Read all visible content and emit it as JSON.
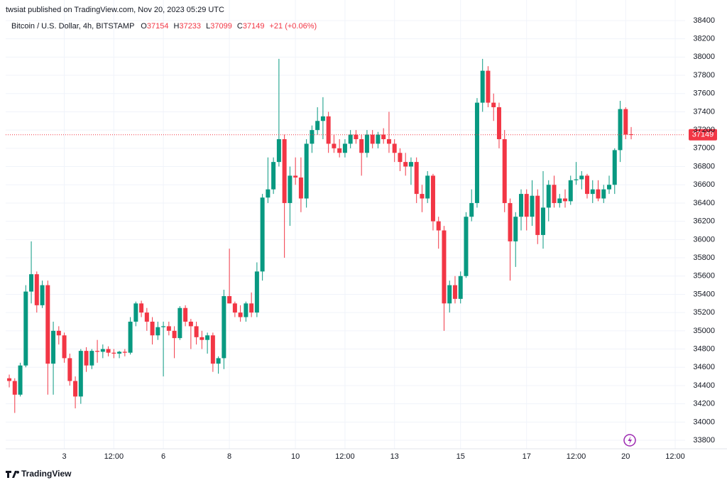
{
  "chart_data": {
    "type": "candlestick",
    "published": "twsiat published on TradingView.com, Nov 20, 2023 05:29 UTC",
    "title": "Bitcoin / U.S. Dollar, 4h, BITSTAMP",
    "ohlc_letters": [
      "O",
      "H",
      "L",
      "C"
    ],
    "change_label": "+21 (+0.06%)",
    "brand": "TradingView",
    "up_color": "#089981",
    "down_color": "#f23645",
    "grid": true,
    "xlim": [
      -0.65,
      122.8
    ],
    "ylim": [
      33707,
      38454
    ],
    "xticks": [
      {
        "value": 10,
        "label": "3"
      },
      {
        "value": 19,
        "label": "12:00"
      },
      {
        "value": 28,
        "label": "6"
      },
      {
        "value": 40,
        "label": "8"
      },
      {
        "value": 52,
        "label": "10"
      },
      {
        "value": 61,
        "label": "12:00"
      },
      {
        "value": 70,
        "label": "13"
      },
      {
        "value": 82,
        "label": "15"
      },
      {
        "value": 94,
        "label": "17"
      },
      {
        "value": 103,
        "label": "12:00"
      },
      {
        "value": 112,
        "label": "20"
      },
      {
        "value": 121,
        "label": "12:00"
      }
    ],
    "yticks": [
      33800,
      34000,
      34200,
      34400,
      34600,
      34800,
      35000,
      35200,
      35400,
      35600,
      35800,
      36000,
      36200,
      36400,
      36600,
      36800,
      37000,
      37200,
      37400,
      37600,
      37800,
      38000,
      38200,
      38400
    ],
    "open": [
      34480,
      34450,
      34300,
      34620,
      35430,
      35620,
      35280,
      35500,
      34640,
      35000,
      34950,
      34700,
      34450,
      34280,
      34780,
      34620,
      34780,
      34770,
      34800,
      34760,
      34750,
      34770,
      34760,
      35100,
      35300,
      35200,
      35100,
      34950,
      35040,
      35050,
      35000,
      34920,
      35250,
      35100,
      35050,
      34930,
      34900,
      34950,
      34640,
      34700,
      35380,
      35300,
      35200,
      35150,
      35300,
      35200,
      35650,
      36460,
      36550,
      36850,
      37100,
      36400,
      36700,
      36680,
      36450,
      37050,
      37200,
      37300,
      37350,
      37050,
      37000,
      36950,
      37050,
      37150,
      37100,
      36950,
      37150,
      37050,
      37150,
      37100,
      37050,
      36950,
      36850,
      36800,
      36850,
      36500,
      36450,
      36700,
      36200,
      36100,
      35300,
      35500,
      35350,
      35600,
      36250,
      36400,
      37500,
      37850,
      37500,
      37450,
      37100,
      36400,
      35980,
      36250,
      36500,
      36250,
      36480,
      36050,
      36350,
      36600,
      36400,
      36450,
      36420,
      36650,
      36660,
      36700,
      36500,
      36550,
      36450,
      36550,
      36600,
      36980,
      37430,
      37154
    ],
    "high": [
      34520,
      34480,
      34650,
      35500,
      35980,
      35650,
      35550,
      35550,
      35100,
      35050,
      34980,
      34750,
      34500,
      34800,
      34820,
      34800,
      34900,
      34850,
      34830,
      34800,
      34780,
      34800,
      35150,
      35320,
      35330,
      35250,
      35150,
      35100,
      35100,
      35100,
      35050,
      35270,
      35280,
      35130,
      35100,
      35000,
      34980,
      34980,
      34720,
      35450,
      35900,
      35320,
      35280,
      35320,
      35420,
      35750,
      36500,
      36900,
      36900,
      37980,
      37150,
      36800,
      36900,
      36900,
      37100,
      37250,
      37450,
      37560,
      37400,
      37150,
      37100,
      37100,
      37200,
      37200,
      37150,
      37200,
      37200,
      37180,
      37220,
      37400,
      37100,
      37000,
      36950,
      36900,
      36900,
      36600,
      36750,
      36720,
      36250,
      36150,
      35550,
      35600,
      35650,
      36300,
      36550,
      37550,
      37980,
      37900,
      37600,
      37500,
      37200,
      36450,
      36300,
      36550,
      36550,
      36650,
      36550,
      36750,
      36650,
      36700,
      36500,
      36550,
      36700,
      36850,
      36750,
      36720,
      36650,
      36650,
      36600,
      36700,
      37000,
      37520,
      37450,
      37233
    ],
    "low": [
      34380,
      34100,
      34280,
      34600,
      35300,
      35200,
      35250,
      34300,
      34300,
      34850,
      34650,
      34400,
      34150,
      34200,
      34550,
      34580,
      34650,
      34700,
      34720,
      34700,
      34700,
      34720,
      34740,
      35050,
      35150,
      35000,
      34850,
      34900,
      34500,
      34950,
      34700,
      34900,
      35050,
      34800,
      34850,
      34800,
      34750,
      34550,
      34530,
      34580,
      35300,
      35150,
      35100,
      35100,
      35150,
      35150,
      35550,
      36400,
      36500,
      36800,
      35800,
      36150,
      36600,
      36300,
      36350,
      36950,
      37150,
      37100,
      36950,
      36950,
      36900,
      36900,
      37000,
      37050,
      36700,
      36900,
      37000,
      37000,
      37050,
      36950,
      36850,
      36750,
      36700,
      36600,
      36400,
      36300,
      36400,
      36100,
      35900,
      35000,
      35200,
      35300,
      35300,
      35580,
      36200,
      36350,
      37400,
      37450,
      37300,
      37000,
      36300,
      35550,
      35700,
      36100,
      36100,
      36150,
      35950,
      35900,
      36200,
      36350,
      36350,
      36350,
      36380,
      36600,
      36550,
      36450,
      36400,
      36420,
      36400,
      36500,
      36500,
      36850,
      37100,
      37099
    ],
    "close": [
      34450,
      34300,
      34620,
      35430,
      35620,
      35280,
      35500,
      34640,
      35000,
      34950,
      34700,
      34450,
      34280,
      34780,
      34620,
      34780,
      34770,
      34800,
      34760,
      34750,
      34770,
      34760,
      35100,
      35300,
      35200,
      35100,
      34950,
      35040,
      35050,
      35000,
      34920,
      35250,
      35100,
      35050,
      34930,
      34900,
      34950,
      34640,
      34700,
      35380,
      35300,
      35200,
      35150,
      35300,
      35200,
      35650,
      36460,
      36550,
      36850,
      37100,
      36400,
      36700,
      36680,
      36450,
      37050,
      37200,
      37300,
      37350,
      37050,
      37000,
      36950,
      37050,
      37150,
      37100,
      36950,
      37150,
      37050,
      37150,
      37100,
      37050,
      36950,
      36850,
      36800,
      36850,
      36500,
      36450,
      36700,
      36200,
      36100,
      35300,
      35500,
      35350,
      35600,
      36250,
      36400,
      37500,
      37850,
      37500,
      37450,
      37100,
      36400,
      35980,
      36250,
      36500,
      36250,
      36480,
      36050,
      36350,
      36600,
      36400,
      36450,
      36420,
      36650,
      36660,
      36700,
      36500,
      36550,
      36450,
      36550,
      36600,
      36980,
      37430,
      37150,
      37149
    ]
  }
}
